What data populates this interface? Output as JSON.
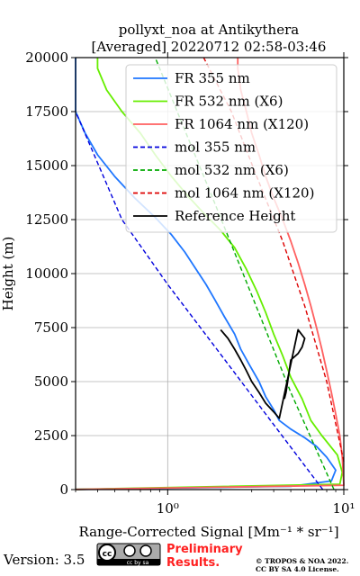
{
  "chart_data": {
    "type": "line",
    "title": "pollyxt_noa at Antikythera",
    "subtitle": "[Averaged] 20220712 02:58-03:46",
    "xlabel": "Range-Corrected Signal [Mm⁻¹ * sr⁻¹]",
    "ylabel": "Height (m)",
    "xscale": "log",
    "xlim": [
      0.3,
      10
    ],
    "ylim": [
      0,
      20000
    ],
    "x_ticks": [
      1,
      10
    ],
    "x_tick_labels": [
      "10⁰",
      "10¹"
    ],
    "y_ticks": [
      0,
      2500,
      5000,
      7500,
      10000,
      12500,
      15000,
      17500,
      20000
    ],
    "y_tick_labels": [
      "0",
      "2500",
      "5000",
      "7500",
      "10000",
      "12500",
      "15000",
      "17500",
      "20000"
    ],
    "grid": true,
    "legend_position": "top-right",
    "series": [
      {
        "name": "FR 355 nm",
        "color": "#1f77ff",
        "points": [
          [
            0.3,
            10
          ],
          [
            5.0,
            150
          ],
          [
            8.5,
            400
          ],
          [
            9.0,
            900
          ],
          [
            8.0,
            1500
          ],
          [
            7.0,
            2000
          ],
          [
            6.0,
            2400
          ],
          [
            5.0,
            2800
          ],
          [
            4.3,
            3200
          ],
          [
            4.0,
            3700
          ],
          [
            3.6,
            4300
          ],
          [
            3.3,
            5000
          ],
          [
            2.9,
            5800
          ],
          [
            2.6,
            6500
          ],
          [
            2.4,
            7200
          ],
          [
            2.1,
            8000
          ],
          [
            1.85,
            8800
          ],
          [
            1.65,
            9500
          ],
          [
            1.45,
            10200
          ],
          [
            1.25,
            11000
          ],
          [
            1.05,
            11800
          ],
          [
            0.85,
            12600
          ],
          [
            0.65,
            13500
          ],
          [
            0.5,
            14500
          ],
          [
            0.4,
            15500
          ],
          [
            0.34,
            16500
          ],
          [
            0.3,
            17500
          ],
          [
            0.3,
            20000
          ]
        ]
      },
      {
        "name": "FR 532 nm (X6)",
        "color": "#66ee00",
        "points": [
          [
            0.3,
            10
          ],
          [
            9.5,
            250
          ],
          [
            9.8,
            800
          ],
          [
            9.2,
            1600
          ],
          [
            7.5,
            2500
          ],
          [
            6.5,
            3200
          ],
          [
            5.8,
            4200
          ],
          [
            5.0,
            5200
          ],
          [
            4.5,
            6200
          ],
          [
            4.0,
            7200
          ],
          [
            3.6,
            8200
          ],
          [
            3.2,
            9200
          ],
          [
            2.8,
            10200
          ],
          [
            2.4,
            11200
          ],
          [
            2.0,
            12000
          ],
          [
            1.6,
            12800
          ],
          [
            1.3,
            13600
          ],
          [
            1.05,
            14500
          ],
          [
            0.85,
            15500
          ],
          [
            0.7,
            16500
          ],
          [
            0.55,
            17500
          ],
          [
            0.45,
            18500
          ],
          [
            0.4,
            19500
          ],
          [
            0.4,
            20000
          ]
        ]
      },
      {
        "name": "FR 1064 nm (X120)",
        "color": "#ff6060",
        "points": [
          [
            0.3,
            10
          ],
          [
            10.0,
            200
          ],
          [
            9.8,
            1500
          ],
          [
            9.5,
            2500
          ],
          [
            9.0,
            3500
          ],
          [
            8.5,
            4500
          ],
          [
            8.0,
            5500
          ],
          [
            7.5,
            6500
          ],
          [
            7.0,
            7500
          ],
          [
            6.5,
            8500
          ],
          [
            6.0,
            9500
          ],
          [
            5.5,
            10500
          ],
          [
            5.0,
            11500
          ],
          [
            4.5,
            12500
          ],
          [
            4.0,
            13500
          ],
          [
            3.6,
            14500
          ],
          [
            3.3,
            15500
          ],
          [
            3.0,
            16500
          ],
          [
            2.8,
            17500
          ],
          [
            2.6,
            18500
          ],
          [
            2.5,
            19500
          ],
          [
            2.5,
            20000
          ]
        ]
      },
      {
        "name": "mol 355 nm",
        "color": "#0000dd",
        "style": "dashed",
        "points": [
          [
            7.6,
            0
          ],
          [
            3.6,
            3500
          ],
          [
            1.9,
            6500
          ],
          [
            1.0,
            9500
          ],
          [
            0.55,
            12500
          ],
          [
            0.3,
            17500
          ]
        ]
      },
      {
        "name": "mol 532 nm (X6)",
        "color": "#00aa00",
        "style": "dashed",
        "points": [
          [
            8.8,
            0
          ],
          [
            5.0,
            4500
          ],
          [
            3.0,
            9000
          ],
          [
            1.8,
            13500
          ],
          [
            1.2,
            17000
          ],
          [
            0.85,
            20000
          ]
        ]
      },
      {
        "name": "mol 1064 nm (X120)",
        "color": "#dd0000",
        "style": "dashed",
        "points": [
          [
            10.0,
            1300
          ],
          [
            8.0,
            5000
          ],
          [
            6.0,
            8500
          ],
          [
            4.5,
            11500
          ],
          [
            3.2,
            14500
          ],
          [
            2.3,
            17500
          ],
          [
            1.6,
            20000
          ]
        ]
      },
      {
        "name": "Reference Height",
        "color": "#000000",
        "points": [
          [
            2.0,
            7400
          ],
          [
            2.2,
            7000
          ],
          [
            2.4,
            6500
          ],
          [
            2.6,
            6000
          ],
          [
            2.8,
            5500
          ],
          [
            3.0,
            5000
          ],
          [
            3.3,
            4500
          ],
          [
            3.6,
            4000
          ],
          [
            4.0,
            3600
          ],
          [
            4.3,
            3300
          ],
          [
            5.5,
            7400
          ],
          [
            6.0,
            7000
          ],
          [
            5.8,
            6600
          ],
          [
            5.5,
            6300
          ],
          [
            5.0,
            6000
          ],
          [
            4.9,
            5500
          ],
          [
            4.8,
            5000
          ],
          [
            4.7,
            4500
          ],
          [
            4.6,
            4200
          ]
        ]
      }
    ]
  },
  "footer": {
    "version": "Version: 3.5",
    "license_badge": "cc by sa",
    "preliminary_line1": "Preliminary",
    "preliminary_line2": "Results.",
    "copyright_line1": "© TROPOS & NOA 2022.",
    "copyright_line2": "CC BY SA 4.0 License."
  }
}
